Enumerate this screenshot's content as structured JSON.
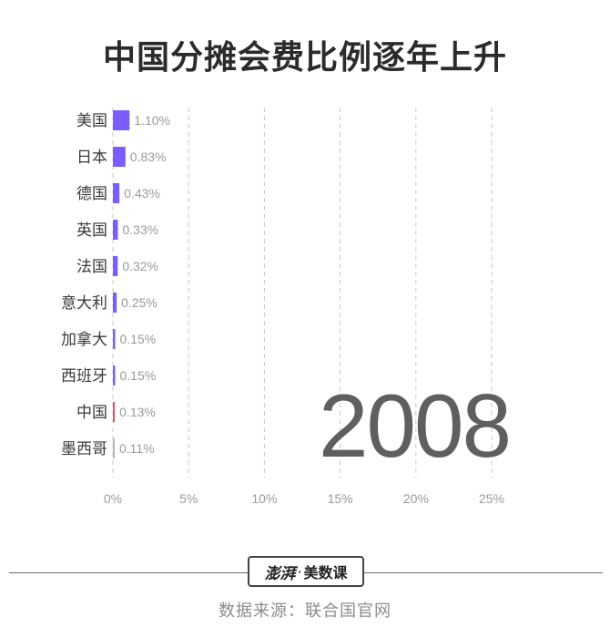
{
  "title": "中国分摊会费比例逐年上升",
  "year_label": "2008",
  "logo": {
    "brand": "澎湃",
    "dot": "·",
    "sub": "美数课"
  },
  "source": "数据来源：联合国官网",
  "chart_data": {
    "type": "bar",
    "orientation": "horizontal",
    "categories": [
      "美国",
      "日本",
      "德国",
      "英国",
      "法国",
      "意大利",
      "加拿大",
      "西班牙",
      "中国",
      "墨西哥"
    ],
    "values": [
      1.1,
      0.83,
      0.43,
      0.33,
      0.32,
      0.25,
      0.15,
      0.15,
      0.13,
      0.11
    ],
    "value_labels": [
      "1.10%",
      "0.83%",
      "0.43%",
      "0.33%",
      "0.32%",
      "0.25%",
      "0.15%",
      "0.15%",
      "0.13%",
      "0.11%"
    ],
    "colors": [
      "#7b5cff",
      "#7b5cff",
      "#7b5cff",
      "#7b5cff",
      "#7b5cff",
      "#7b5cff",
      "#7b5cff",
      "#7b5cff",
      "#e8566e",
      "#b8b8b8"
    ],
    "x_ticks": [
      0,
      5,
      10,
      15,
      20,
      25
    ],
    "x_tick_labels": [
      "0%",
      "5%",
      "10%",
      "15%",
      "20%",
      "25%"
    ],
    "xlim": [
      0,
      25
    ],
    "grid": "vertical dashed",
    "xlabel": "",
    "ylabel": ""
  }
}
